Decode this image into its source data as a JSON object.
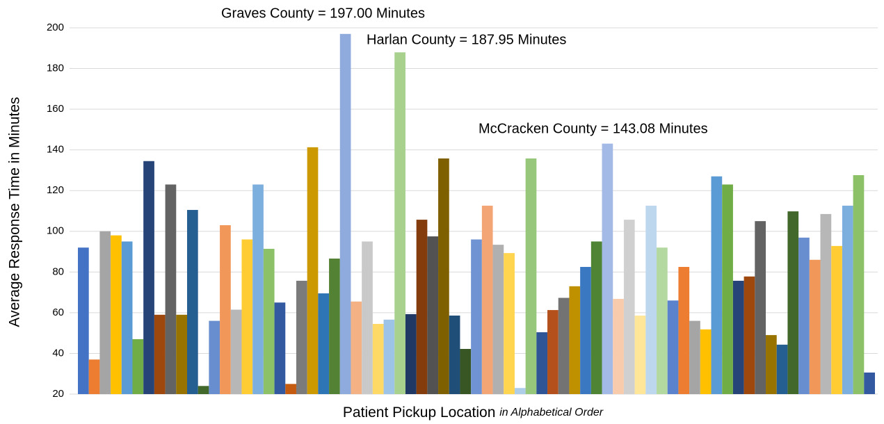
{
  "chart_data": {
    "type": "bar",
    "y_label": "Average Response Time in Minutes",
    "x_label": "Patient Pickup Location",
    "x_label_note": "in Alphabetical Order",
    "annotations": [
      "Graves County = 197.00 Minutes",
      "Harlan County = 187.95 Minutes",
      "McCracken County = 143.08 Minutes"
    ],
    "ylim": [
      20,
      200
    ],
    "yticks": [
      20,
      40,
      60,
      80,
      100,
      120,
      140,
      160,
      180,
      200
    ],
    "grid": true,
    "values": [
      92,
      37,
      100,
      98,
      95,
      47,
      134.5,
      59,
      123,
      59,
      110.5,
      24,
      56,
      103,
      61.5,
      96,
      123,
      91.4,
      65,
      25,
      75.7,
      141.3,
      69.5,
      86.6,
      197,
      65.5,
      95,
      54.5,
      56.6,
      187.95,
      59.3,
      105.7,
      97.5,
      135.8,
      58.6,
      42.2,
      96,
      112.6,
      93.4,
      89.3,
      23,
      135.8,
      50.4,
      61.3,
      67.3,
      73,
      82.5,
      95,
      143.08,
      66.8,
      105.7,
      58.6,
      112.6,
      92,
      66,
      82.5,
      56,
      51.8,
      127,
      123,
      75.7,
      77.8,
      105,
      49,
      44.3,
      109.8,
      96.9,
      86,
      108.5,
      92.8,
      112.6,
      127.6,
      30.6
    ],
    "colors": [
      "#4472c4",
      "#ed7d31",
      "#a5a5a5",
      "#ffc000",
      "#5b9bd5",
      "#70ad47",
      "#264478",
      "#9e480e",
      "#636363",
      "#997300",
      "#255e91",
      "#43682b",
      "#698ed0",
      "#f1975a",
      "#b7b7b7",
      "#ffcd33",
      "#7cafdd",
      "#8cc168",
      "#335aa1",
      "#c55a11",
      "#7b7b7b",
      "#cc9a00",
      "#2e75b6",
      "#548235",
      "#8faadc",
      "#f4b183",
      "#c9c9c9",
      "#ffd966",
      "#9dc3e6",
      "#a9d18e",
      "#203864",
      "#843c0c",
      "#525252",
      "#7f6000",
      "#1f4e79",
      "#375623",
      "#6f93d3",
      "#f4a576",
      "#b0b0b0",
      "#ffd44f",
      "#aecde9",
      "#97c77a",
      "#2f5597",
      "#b4501b",
      "#737373",
      "#bf9000",
      "#3b78c2",
      "#4e8433",
      "#a3b9e6",
      "#f8cbad",
      "#d0d0d0",
      "#ffe699",
      "#bdd7ee",
      "#b4d9a0",
      "#5b82cc",
      "#ed7d31",
      "#a5a5a5",
      "#ffc000",
      "#5b9bd5",
      "#70ad47",
      "#264478",
      "#9e480e",
      "#636363",
      "#997300",
      "#255e91",
      "#43682b",
      "#698ed0",
      "#f1975a",
      "#b7b7b7",
      "#ffcd33",
      "#7cafdd",
      "#8cc168",
      "#335aa1"
    ]
  }
}
